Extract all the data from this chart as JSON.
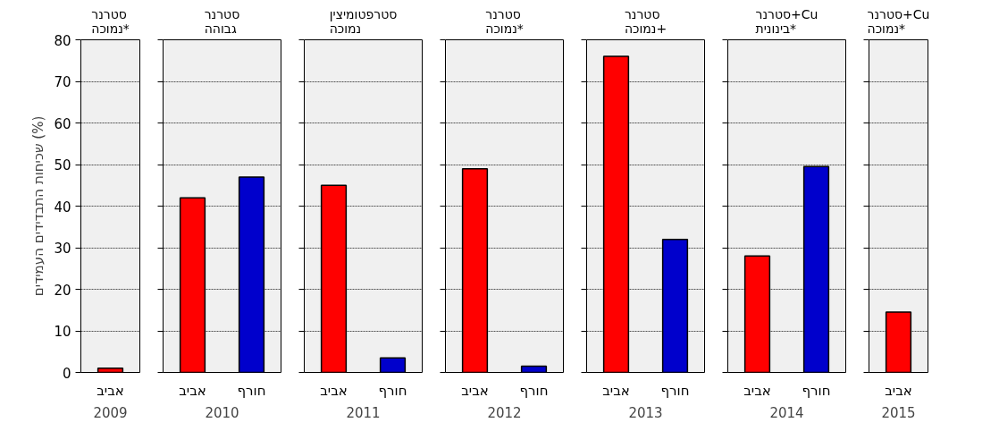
{
  "chart_data": [
    {
      "type": "bar",
      "title": "סטרנר\nנמוכה*",
      "xlabel": "2009",
      "ylabel": "שכיחות התבדידים העמידים (%)",
      "categories": [
        "אביב"
      ],
      "values": [
        1
      ],
      "colors": [
        "#ff0000"
      ],
      "ylim": [
        0,
        80
      ],
      "yticks": [
        0,
        10,
        20,
        30,
        40,
        50,
        60,
        70,
        80
      ],
      "grid": "y"
    },
    {
      "type": "bar",
      "title": "סטרנר\nגבוהה",
      "xlabel": "2010",
      "categories": [
        "אביב",
        "חורף"
      ],
      "values": [
        42,
        47
      ],
      "colors": [
        "#ff0000",
        "#0000cc"
      ],
      "ylim": [
        0,
        80
      ],
      "yticks": [
        0,
        10,
        20,
        30,
        40,
        50,
        60,
        70,
        80
      ],
      "grid": "y",
      "tick_labels": "x"
    },
    {
      "type": "bar",
      "title": "סטרפטומיצין\nנמוכה",
      "xlabel": "2011",
      "categories": [
        "אביב",
        "חורף"
      ],
      "values": [
        45,
        3.5
      ],
      "colors": [
        "#ff0000",
        "#0000cc"
      ],
      "ylim": [
        0,
        80
      ],
      "yticks": [
        0,
        10,
        20,
        30,
        40,
        50,
        60,
        70,
        80
      ],
      "grid": "y",
      "tick_labels": "x"
    },
    {
      "type": "bar",
      "title": "סטרנר\nנמוכה*",
      "xlabel": "2012",
      "categories": [
        "אביב",
        "חורף"
      ],
      "values": [
        49,
        1.5
      ],
      "colors": [
        "#ff0000",
        "#0000cc"
      ],
      "ylim": [
        0,
        80
      ],
      "yticks": [
        0,
        10,
        20,
        30,
        40,
        50,
        60,
        70,
        80
      ],
      "grid": "y",
      "tick_labels": "x"
    },
    {
      "type": "bar",
      "title": "סטרנר\nנמוכה+",
      "xlabel": "2013",
      "categories": [
        "אביב",
        "חורף"
      ],
      "values": [
        76,
        32
      ],
      "colors": [
        "#ff0000",
        "#0000cc"
      ],
      "ylim": [
        0,
        80
      ],
      "yticks": [
        0,
        10,
        20,
        30,
        40,
        50,
        60,
        70,
        80
      ],
      "grid": "y",
      "tick_labels": "x"
    },
    {
      "type": "bar",
      "title": "סטרנר+Cu\nבינונית*",
      "xlabel": "2014",
      "categories": [
        "אביב",
        "חורף"
      ],
      "values": [
        28,
        49.5
      ],
      "colors": [
        "#ff0000",
        "#0000cc"
      ],
      "ylim": [
        0,
        80
      ],
      "yticks": [
        0,
        10,
        20,
        30,
        40,
        50,
        60,
        70,
        80
      ],
      "grid": "y",
      "tick_labels": "x"
    },
    {
      "type": "bar",
      "title": "סטרנר+Cu\nנמוכה*",
      "xlabel": "2015",
      "categories": [
        "אביב"
      ],
      "values": [
        14.5
      ],
      "colors": [
        "#ff0000"
      ],
      "ylim": [
        0,
        80
      ],
      "yticks": [
        0,
        10,
        20,
        30,
        40,
        50,
        60,
        70,
        80
      ],
      "grid": "y",
      "tick_labels": "x"
    }
  ]
}
